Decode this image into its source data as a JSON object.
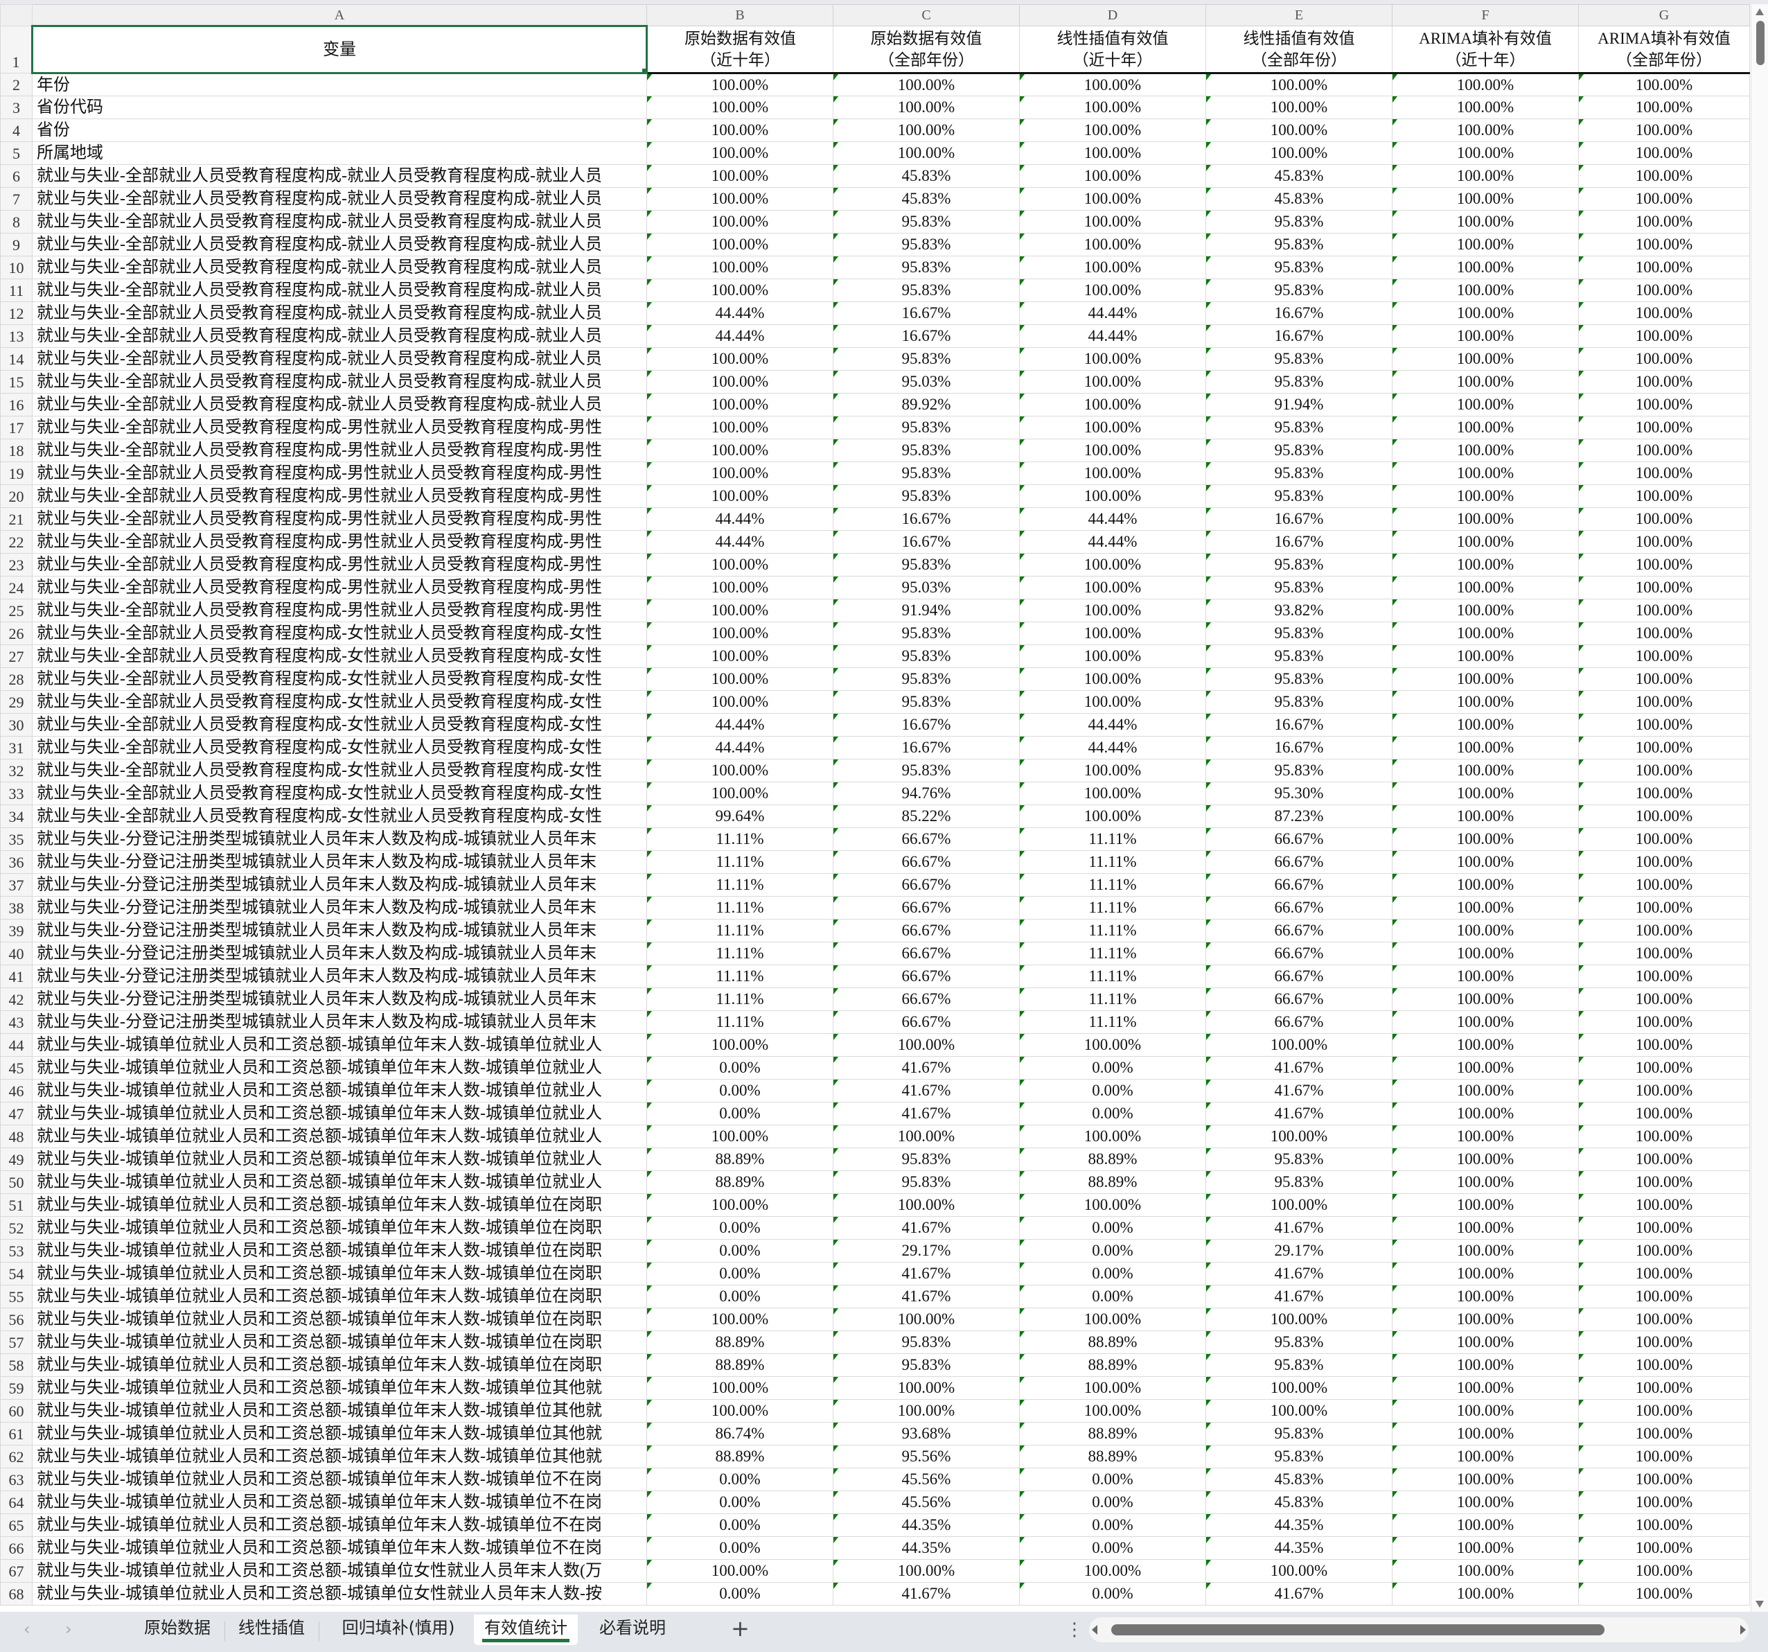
{
  "column_letters": [
    "A",
    "B",
    "C",
    "D",
    "E",
    "F",
    "G"
  ],
  "header": {
    "row_number": "1",
    "variable": "变量",
    "columns": [
      {
        "line1": "原始数据有效值",
        "line2": "（近十年）"
      },
      {
        "line1": "原始数据有效值",
        "line2": "（全部年份）"
      },
      {
        "line1": "线性插值有效值",
        "line2": "（近十年）"
      },
      {
        "line1": "线性插值有效值",
        "line2": "（全部年份）"
      },
      {
        "line1": "ARIMA填补有效值",
        "line2": "（近十年）"
      },
      {
        "line1": "ARIMA填补有效值",
        "line2": "（全部年份）"
      }
    ]
  },
  "rows": [
    {
      "n": "2",
      "label": "年份",
      "v": [
        "100.00%",
        "100.00%",
        "100.00%",
        "100.00%",
        "100.00%",
        "100.00%"
      ]
    },
    {
      "n": "3",
      "label": "省份代码",
      "v": [
        "100.00%",
        "100.00%",
        "100.00%",
        "100.00%",
        "100.00%",
        "100.00%"
      ]
    },
    {
      "n": "4",
      "label": "省份",
      "v": [
        "100.00%",
        "100.00%",
        "100.00%",
        "100.00%",
        "100.00%",
        "100.00%"
      ]
    },
    {
      "n": "5",
      "label": "所属地域",
      "v": [
        "100.00%",
        "100.00%",
        "100.00%",
        "100.00%",
        "100.00%",
        "100.00%"
      ]
    },
    {
      "n": "6",
      "label": "就业与失业-全部就业人员受教育程度构成-就业人员受教育程度构成-就业人员",
      "v": [
        "100.00%",
        "45.83%",
        "100.00%",
        "45.83%",
        "100.00%",
        "100.00%"
      ]
    },
    {
      "n": "7",
      "label": "就业与失业-全部就业人员受教育程度构成-就业人员受教育程度构成-就业人员",
      "v": [
        "100.00%",
        "45.83%",
        "100.00%",
        "45.83%",
        "100.00%",
        "100.00%"
      ]
    },
    {
      "n": "8",
      "label": "就业与失业-全部就业人员受教育程度构成-就业人员受教育程度构成-就业人员",
      "v": [
        "100.00%",
        "95.83%",
        "100.00%",
        "95.83%",
        "100.00%",
        "100.00%"
      ]
    },
    {
      "n": "9",
      "label": "就业与失业-全部就业人员受教育程度构成-就业人员受教育程度构成-就业人员",
      "v": [
        "100.00%",
        "95.83%",
        "100.00%",
        "95.83%",
        "100.00%",
        "100.00%"
      ]
    },
    {
      "n": "10",
      "label": "就业与失业-全部就业人员受教育程度构成-就业人员受教育程度构成-就业人员",
      "v": [
        "100.00%",
        "95.83%",
        "100.00%",
        "95.83%",
        "100.00%",
        "100.00%"
      ]
    },
    {
      "n": "11",
      "label": "就业与失业-全部就业人员受教育程度构成-就业人员受教育程度构成-就业人员",
      "v": [
        "100.00%",
        "95.83%",
        "100.00%",
        "95.83%",
        "100.00%",
        "100.00%"
      ]
    },
    {
      "n": "12",
      "label": "就业与失业-全部就业人员受教育程度构成-就业人员受教育程度构成-就业人员",
      "v": [
        "44.44%",
        "16.67%",
        "44.44%",
        "16.67%",
        "100.00%",
        "100.00%"
      ]
    },
    {
      "n": "13",
      "label": "就业与失业-全部就业人员受教育程度构成-就业人员受教育程度构成-就业人员",
      "v": [
        "44.44%",
        "16.67%",
        "44.44%",
        "16.67%",
        "100.00%",
        "100.00%"
      ]
    },
    {
      "n": "14",
      "label": "就业与失业-全部就业人员受教育程度构成-就业人员受教育程度构成-就业人员",
      "v": [
        "100.00%",
        "95.83%",
        "100.00%",
        "95.83%",
        "100.00%",
        "100.00%"
      ]
    },
    {
      "n": "15",
      "label": "就业与失业-全部就业人员受教育程度构成-就业人员受教育程度构成-就业人员",
      "v": [
        "100.00%",
        "95.03%",
        "100.00%",
        "95.83%",
        "100.00%",
        "100.00%"
      ]
    },
    {
      "n": "16",
      "label": "就业与失业-全部就业人员受教育程度构成-就业人员受教育程度构成-就业人员",
      "v": [
        "100.00%",
        "89.92%",
        "100.00%",
        "91.94%",
        "100.00%",
        "100.00%"
      ]
    },
    {
      "n": "17",
      "label": "就业与失业-全部就业人员受教育程度构成-男性就业人员受教育程度构成-男性",
      "v": [
        "100.00%",
        "95.83%",
        "100.00%",
        "95.83%",
        "100.00%",
        "100.00%"
      ]
    },
    {
      "n": "18",
      "label": "就业与失业-全部就业人员受教育程度构成-男性就业人员受教育程度构成-男性",
      "v": [
        "100.00%",
        "95.83%",
        "100.00%",
        "95.83%",
        "100.00%",
        "100.00%"
      ]
    },
    {
      "n": "19",
      "label": "就业与失业-全部就业人员受教育程度构成-男性就业人员受教育程度构成-男性",
      "v": [
        "100.00%",
        "95.83%",
        "100.00%",
        "95.83%",
        "100.00%",
        "100.00%"
      ]
    },
    {
      "n": "20",
      "label": "就业与失业-全部就业人员受教育程度构成-男性就业人员受教育程度构成-男性",
      "v": [
        "100.00%",
        "95.83%",
        "100.00%",
        "95.83%",
        "100.00%",
        "100.00%"
      ]
    },
    {
      "n": "21",
      "label": "就业与失业-全部就业人员受教育程度构成-男性就业人员受教育程度构成-男性",
      "v": [
        "44.44%",
        "16.67%",
        "44.44%",
        "16.67%",
        "100.00%",
        "100.00%"
      ]
    },
    {
      "n": "22",
      "label": "就业与失业-全部就业人员受教育程度构成-男性就业人员受教育程度构成-男性",
      "v": [
        "44.44%",
        "16.67%",
        "44.44%",
        "16.67%",
        "100.00%",
        "100.00%"
      ]
    },
    {
      "n": "23",
      "label": "就业与失业-全部就业人员受教育程度构成-男性就业人员受教育程度构成-男性",
      "v": [
        "100.00%",
        "95.83%",
        "100.00%",
        "95.83%",
        "100.00%",
        "100.00%"
      ]
    },
    {
      "n": "24",
      "label": "就业与失业-全部就业人员受教育程度构成-男性就业人员受教育程度构成-男性",
      "v": [
        "100.00%",
        "95.03%",
        "100.00%",
        "95.83%",
        "100.00%",
        "100.00%"
      ]
    },
    {
      "n": "25",
      "label": "就业与失业-全部就业人员受教育程度构成-男性就业人员受教育程度构成-男性",
      "v": [
        "100.00%",
        "91.94%",
        "100.00%",
        "93.82%",
        "100.00%",
        "100.00%"
      ]
    },
    {
      "n": "26",
      "label": "就业与失业-全部就业人员受教育程度构成-女性就业人员受教育程度构成-女性",
      "v": [
        "100.00%",
        "95.83%",
        "100.00%",
        "95.83%",
        "100.00%",
        "100.00%"
      ]
    },
    {
      "n": "27",
      "label": "就业与失业-全部就业人员受教育程度构成-女性就业人员受教育程度构成-女性",
      "v": [
        "100.00%",
        "95.83%",
        "100.00%",
        "95.83%",
        "100.00%",
        "100.00%"
      ]
    },
    {
      "n": "28",
      "label": "就业与失业-全部就业人员受教育程度构成-女性就业人员受教育程度构成-女性",
      "v": [
        "100.00%",
        "95.83%",
        "100.00%",
        "95.83%",
        "100.00%",
        "100.00%"
      ]
    },
    {
      "n": "29",
      "label": "就业与失业-全部就业人员受教育程度构成-女性就业人员受教育程度构成-女性",
      "v": [
        "100.00%",
        "95.83%",
        "100.00%",
        "95.83%",
        "100.00%",
        "100.00%"
      ]
    },
    {
      "n": "30",
      "label": "就业与失业-全部就业人员受教育程度构成-女性就业人员受教育程度构成-女性",
      "v": [
        "44.44%",
        "16.67%",
        "44.44%",
        "16.67%",
        "100.00%",
        "100.00%"
      ]
    },
    {
      "n": "31",
      "label": "就业与失业-全部就业人员受教育程度构成-女性就业人员受教育程度构成-女性",
      "v": [
        "44.44%",
        "16.67%",
        "44.44%",
        "16.67%",
        "100.00%",
        "100.00%"
      ]
    },
    {
      "n": "32",
      "label": "就业与失业-全部就业人员受教育程度构成-女性就业人员受教育程度构成-女性",
      "v": [
        "100.00%",
        "95.83%",
        "100.00%",
        "95.83%",
        "100.00%",
        "100.00%"
      ]
    },
    {
      "n": "33",
      "label": "就业与失业-全部就业人员受教育程度构成-女性就业人员受教育程度构成-女性",
      "v": [
        "100.00%",
        "94.76%",
        "100.00%",
        "95.30%",
        "100.00%",
        "100.00%"
      ]
    },
    {
      "n": "34",
      "label": "就业与失业-全部就业人员受教育程度构成-女性就业人员受教育程度构成-女性",
      "v": [
        "99.64%",
        "85.22%",
        "100.00%",
        "87.23%",
        "100.00%",
        "100.00%"
      ]
    },
    {
      "n": "35",
      "label": "就业与失业-分登记注册类型城镇就业人员年末人数及构成-城镇就业人员年末",
      "v": [
        "11.11%",
        "66.67%",
        "11.11%",
        "66.67%",
        "100.00%",
        "100.00%"
      ]
    },
    {
      "n": "36",
      "label": "就业与失业-分登记注册类型城镇就业人员年末人数及构成-城镇就业人员年末",
      "v": [
        "11.11%",
        "66.67%",
        "11.11%",
        "66.67%",
        "100.00%",
        "100.00%"
      ]
    },
    {
      "n": "37",
      "label": "就业与失业-分登记注册类型城镇就业人员年末人数及构成-城镇就业人员年末",
      "v": [
        "11.11%",
        "66.67%",
        "11.11%",
        "66.67%",
        "100.00%",
        "100.00%"
      ]
    },
    {
      "n": "38",
      "label": "就业与失业-分登记注册类型城镇就业人员年末人数及构成-城镇就业人员年末",
      "v": [
        "11.11%",
        "66.67%",
        "11.11%",
        "66.67%",
        "100.00%",
        "100.00%"
      ]
    },
    {
      "n": "39",
      "label": "就业与失业-分登记注册类型城镇就业人员年末人数及构成-城镇就业人员年末",
      "v": [
        "11.11%",
        "66.67%",
        "11.11%",
        "66.67%",
        "100.00%",
        "100.00%"
      ]
    },
    {
      "n": "40",
      "label": "就业与失业-分登记注册类型城镇就业人员年末人数及构成-城镇就业人员年末",
      "v": [
        "11.11%",
        "66.67%",
        "11.11%",
        "66.67%",
        "100.00%",
        "100.00%"
      ]
    },
    {
      "n": "41",
      "label": "就业与失业-分登记注册类型城镇就业人员年末人数及构成-城镇就业人员年末",
      "v": [
        "11.11%",
        "66.67%",
        "11.11%",
        "66.67%",
        "100.00%",
        "100.00%"
      ]
    },
    {
      "n": "42",
      "label": "就业与失业-分登记注册类型城镇就业人员年末人数及构成-城镇就业人员年末",
      "v": [
        "11.11%",
        "66.67%",
        "11.11%",
        "66.67%",
        "100.00%",
        "100.00%"
      ]
    },
    {
      "n": "43",
      "label": "就业与失业-分登记注册类型城镇就业人员年末人数及构成-城镇就业人员年末",
      "v": [
        "11.11%",
        "66.67%",
        "11.11%",
        "66.67%",
        "100.00%",
        "100.00%"
      ]
    },
    {
      "n": "44",
      "label": "就业与失业-城镇单位就业人员和工资总额-城镇单位年末人数-城镇单位就业人",
      "v": [
        "100.00%",
        "100.00%",
        "100.00%",
        "100.00%",
        "100.00%",
        "100.00%"
      ]
    },
    {
      "n": "45",
      "label": "就业与失业-城镇单位就业人员和工资总额-城镇单位年末人数-城镇单位就业人",
      "v": [
        "0.00%",
        "41.67%",
        "0.00%",
        "41.67%",
        "100.00%",
        "100.00%"
      ]
    },
    {
      "n": "46",
      "label": "就业与失业-城镇单位就业人员和工资总额-城镇单位年末人数-城镇单位就业人",
      "v": [
        "0.00%",
        "41.67%",
        "0.00%",
        "41.67%",
        "100.00%",
        "100.00%"
      ]
    },
    {
      "n": "47",
      "label": "就业与失业-城镇单位就业人员和工资总额-城镇单位年末人数-城镇单位就业人",
      "v": [
        "0.00%",
        "41.67%",
        "0.00%",
        "41.67%",
        "100.00%",
        "100.00%"
      ]
    },
    {
      "n": "48",
      "label": "就业与失业-城镇单位就业人员和工资总额-城镇单位年末人数-城镇单位就业人",
      "v": [
        "100.00%",
        "100.00%",
        "100.00%",
        "100.00%",
        "100.00%",
        "100.00%"
      ]
    },
    {
      "n": "49",
      "label": "就业与失业-城镇单位就业人员和工资总额-城镇单位年末人数-城镇单位就业人",
      "v": [
        "88.89%",
        "95.83%",
        "88.89%",
        "95.83%",
        "100.00%",
        "100.00%"
      ]
    },
    {
      "n": "50",
      "label": "就业与失业-城镇单位就业人员和工资总额-城镇单位年末人数-城镇单位就业人",
      "v": [
        "88.89%",
        "95.83%",
        "88.89%",
        "95.83%",
        "100.00%",
        "100.00%"
      ]
    },
    {
      "n": "51",
      "label": "就业与失业-城镇单位就业人员和工资总额-城镇单位年末人数-城镇单位在岗职",
      "v": [
        "100.00%",
        "100.00%",
        "100.00%",
        "100.00%",
        "100.00%",
        "100.00%"
      ]
    },
    {
      "n": "52",
      "label": "就业与失业-城镇单位就业人员和工资总额-城镇单位年末人数-城镇单位在岗职",
      "v": [
        "0.00%",
        "41.67%",
        "0.00%",
        "41.67%",
        "100.00%",
        "100.00%"
      ]
    },
    {
      "n": "53",
      "label": "就业与失业-城镇单位就业人员和工资总额-城镇单位年末人数-城镇单位在岗职",
      "v": [
        "0.00%",
        "29.17%",
        "0.00%",
        "29.17%",
        "100.00%",
        "100.00%"
      ]
    },
    {
      "n": "54",
      "label": "就业与失业-城镇单位就业人员和工资总额-城镇单位年末人数-城镇单位在岗职",
      "v": [
        "0.00%",
        "41.67%",
        "0.00%",
        "41.67%",
        "100.00%",
        "100.00%"
      ]
    },
    {
      "n": "55",
      "label": "就业与失业-城镇单位就业人员和工资总额-城镇单位年末人数-城镇单位在岗职",
      "v": [
        "0.00%",
        "41.67%",
        "0.00%",
        "41.67%",
        "100.00%",
        "100.00%"
      ]
    },
    {
      "n": "56",
      "label": "就业与失业-城镇单位就业人员和工资总额-城镇单位年末人数-城镇单位在岗职",
      "v": [
        "100.00%",
        "100.00%",
        "100.00%",
        "100.00%",
        "100.00%",
        "100.00%"
      ]
    },
    {
      "n": "57",
      "label": "就业与失业-城镇单位就业人员和工资总额-城镇单位年末人数-城镇单位在岗职",
      "v": [
        "88.89%",
        "95.83%",
        "88.89%",
        "95.83%",
        "100.00%",
        "100.00%"
      ]
    },
    {
      "n": "58",
      "label": "就业与失业-城镇单位就业人员和工资总额-城镇单位年末人数-城镇单位在岗职",
      "v": [
        "88.89%",
        "95.83%",
        "88.89%",
        "95.83%",
        "100.00%",
        "100.00%"
      ]
    },
    {
      "n": "59",
      "label": "就业与失业-城镇单位就业人员和工资总额-城镇单位年末人数-城镇单位其他就",
      "v": [
        "100.00%",
        "100.00%",
        "100.00%",
        "100.00%",
        "100.00%",
        "100.00%"
      ]
    },
    {
      "n": "60",
      "label": "就业与失业-城镇单位就业人员和工资总额-城镇单位年末人数-城镇单位其他就",
      "v": [
        "100.00%",
        "100.00%",
        "100.00%",
        "100.00%",
        "100.00%",
        "100.00%"
      ]
    },
    {
      "n": "61",
      "label": "就业与失业-城镇单位就业人员和工资总额-城镇单位年末人数-城镇单位其他就",
      "v": [
        "86.74%",
        "93.68%",
        "88.89%",
        "95.83%",
        "100.00%",
        "100.00%"
      ]
    },
    {
      "n": "62",
      "label": "就业与失业-城镇单位就业人员和工资总额-城镇单位年末人数-城镇单位其他就",
      "v": [
        "88.89%",
        "95.56%",
        "88.89%",
        "95.83%",
        "100.00%",
        "100.00%"
      ]
    },
    {
      "n": "63",
      "label": "就业与失业-城镇单位就业人员和工资总额-城镇单位年末人数-城镇单位不在岗",
      "v": [
        "0.00%",
        "45.56%",
        "0.00%",
        "45.83%",
        "100.00%",
        "100.00%"
      ]
    },
    {
      "n": "64",
      "label": "就业与失业-城镇单位就业人员和工资总额-城镇单位年末人数-城镇单位不在岗",
      "v": [
        "0.00%",
        "45.56%",
        "0.00%",
        "45.83%",
        "100.00%",
        "100.00%"
      ]
    },
    {
      "n": "65",
      "label": "就业与失业-城镇单位就业人员和工资总额-城镇单位年末人数-城镇单位不在岗",
      "v": [
        "0.00%",
        "44.35%",
        "0.00%",
        "44.35%",
        "100.00%",
        "100.00%"
      ]
    },
    {
      "n": "66",
      "label": "就业与失业-城镇单位就业人员和工资总额-城镇单位年末人数-城镇单位不在岗",
      "v": [
        "0.00%",
        "44.35%",
        "0.00%",
        "44.35%",
        "100.00%",
        "100.00%"
      ]
    },
    {
      "n": "67",
      "label": "就业与失业-城镇单位就业人员和工资总额-城镇单位女性就业人员年末人数(万",
      "v": [
        "100.00%",
        "100.00%",
        "100.00%",
        "100.00%",
        "100.00%",
        "100.00%"
      ]
    },
    {
      "n": "68",
      "label": "就业与失业-城镇单位就业人员和工资总额-城镇单位女性就业人员年末人数-按",
      "v": [
        "0.00%",
        "41.67%",
        "0.00%",
        "41.67%",
        "100.00%",
        "100.00%"
      ]
    }
  ],
  "sheet_tabs": [
    "原始数据",
    "线性插值",
    "回归填补(慎用)",
    "有效值统计",
    "必看说明"
  ],
  "active_tab": "有效值统计",
  "icons": {
    "prev_sheet": "chevron-left-icon",
    "next_sheet": "chevron-right-icon",
    "add_sheet": "plus-icon",
    "more": "vertical-dots-icon"
  },
  "colors": {
    "accent": "#217346",
    "text_indicator": "#0a7a0a"
  }
}
